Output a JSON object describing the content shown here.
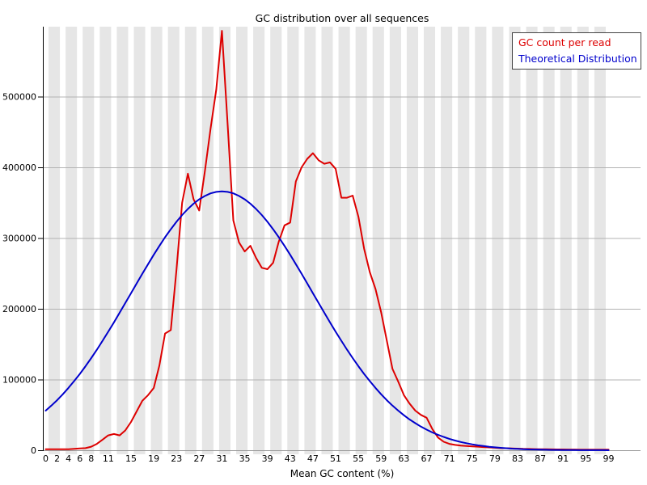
{
  "title": "GC distribution over all sequences",
  "legend": [
    {
      "label": "GC count per read",
      "color": "#dd0000"
    },
    {
      "label": "Theoretical Distribution",
      "color": "#0000cc"
    }
  ],
  "colors": {
    "band": "#e6e6e6",
    "gridline": "#b3b3b3",
    "baseline": "#999999",
    "axis": "#000000",
    "red_series": "#dd0000",
    "blue_series": "#0000cc"
  },
  "chart_data": {
    "type": "line",
    "title": "GC distribution over all sequences",
    "xlabel": "Mean GC content (%)",
    "ylabel": "",
    "xlim": [
      0,
      100
    ],
    "ylim": [
      0,
      600000
    ],
    "grid": "horizontal gridlines at every 100000; alternating vertical background bands",
    "legend_position": "top-right",
    "x_tick_labels": [
      0,
      2,
      4,
      6,
      8,
      11,
      15,
      19,
      23,
      27,
      31,
      35,
      39,
      43,
      47,
      51,
      55,
      59,
      63,
      67,
      71,
      75,
      79,
      83,
      87,
      91,
      95,
      99
    ],
    "y_tick_labels": [
      0,
      100000,
      200000,
      300000,
      400000,
      500000
    ],
    "x": [
      0,
      1,
      2,
      3,
      4,
      5,
      6,
      7,
      8,
      9,
      10,
      11,
      12,
      13,
      14,
      15,
      16,
      17,
      18,
      19,
      20,
      21,
      22,
      23,
      24,
      25,
      26,
      27,
      28,
      29,
      30,
      31,
      32,
      33,
      34,
      35,
      36,
      37,
      38,
      39,
      40,
      41,
      42,
      43,
      44,
      45,
      46,
      47,
      48,
      49,
      50,
      51,
      52,
      53,
      54,
      55,
      56,
      57,
      58,
      59,
      60,
      61,
      62,
      63,
      64,
      65,
      66,
      67,
      68,
      69,
      70,
      71,
      72,
      73,
      74,
      75,
      76,
      77,
      78,
      79,
      80,
      81,
      82,
      83,
      84,
      85,
      86,
      87,
      88,
      89,
      90,
      91,
      92,
      93,
      94,
      95,
      96,
      97,
      98,
      99
    ],
    "series": [
      {
        "name": "GC count per read",
        "color": "#dd0000",
        "values": [
          1500,
          1500,
          1500,
          1500,
          1500,
          2000,
          2500,
          3000,
          5000,
          9000,
          15000,
          21000,
          23000,
          21000,
          28000,
          40000,
          55000,
          70000,
          78000,
          88000,
          120000,
          165000,
          170000,
          255000,
          350000,
          391000,
          355000,
          339000,
          395000,
          455000,
          510000,
          593000,
          460000,
          325000,
          294000,
          281000,
          289000,
          272000,
          258000,
          256000,
          265000,
          295000,
          318000,
          322000,
          380000,
          400000,
          412000,
          420000,
          410000,
          405000,
          407000,
          398000,
          357000,
          357000,
          360000,
          330000,
          285000,
          252000,
          228000,
          195000,
          155000,
          115000,
          97000,
          78000,
          66000,
          56000,
          50000,
          46000,
          30000,
          18000,
          12000,
          9000,
          7500,
          6500,
          6000,
          5500,
          5000,
          4500,
          4000,
          3500,
          3000,
          2800,
          2500,
          2300,
          2000,
          1800,
          1600,
          1500,
          1400,
          1300,
          1200,
          1100,
          1000,
          1000,
          900,
          900,
          800,
          800,
          800,
          800
        ]
      },
      {
        "name": "Theoretical Distribution",
        "color": "#0000cc",
        "values": [
          56000,
          63100,
          70800,
          79100,
          88100,
          97800,
          107900,
          118800,
          130300,
          142200,
          154700,
          167600,
          180800,
          194400,
          208100,
          222000,
          235900,
          249600,
          263100,
          276300,
          288900,
          301100,
          312400,
          323000,
          332600,
          341100,
          348600,
          354700,
          359600,
          363200,
          365300,
          366000,
          365300,
          363200,
          359600,
          354700,
          348600,
          341100,
          332600,
          323000,
          312400,
          301100,
          288900,
          276300,
          263100,
          249600,
          235900,
          222000,
          208100,
          194400,
          180800,
          167600,
          154700,
          142200,
          130300,
          118800,
          107900,
          97800,
          88100,
          79100,
          70800,
          63100,
          56000,
          49500,
          43600,
          38300,
          33400,
          29100,
          25200,
          21800,
          18800,
          16100,
          13700,
          11700,
          9900,
          8300,
          7000,
          5900,
          4900,
          4100,
          3400,
          2800,
          2300,
          1900,
          1500,
          1200,
          1000,
          800,
          700,
          500,
          400,
          350,
          280,
          220,
          170,
          130,
          100,
          80,
          60,
          40
        ]
      }
    ]
  }
}
